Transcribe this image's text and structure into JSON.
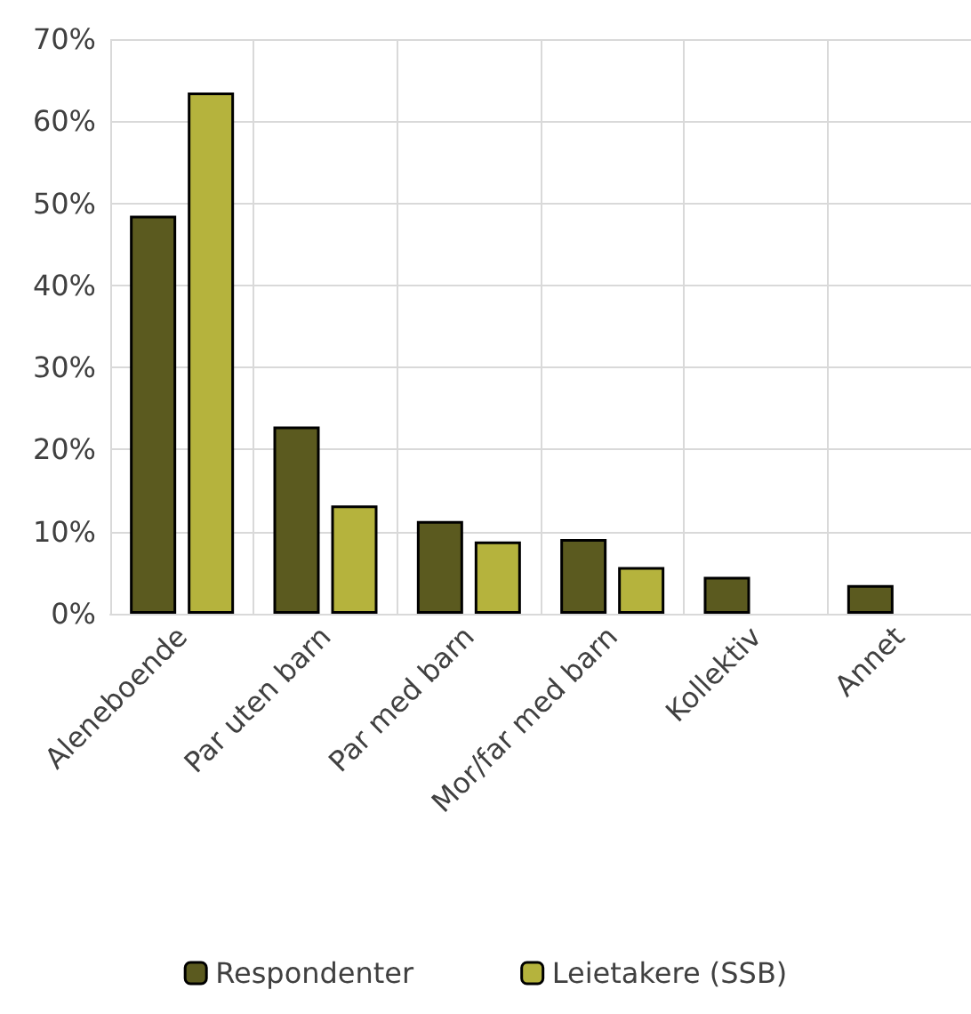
{
  "chart_data": {
    "type": "bar",
    "categories": [
      "Aleneboende",
      "Par uten barn",
      "Par med barn",
      "Mor/far med barn",
      "Kollektiv",
      "Annet"
    ],
    "series": [
      {
        "name": "Respondenter",
        "color": "#5b5a1f",
        "values": [
          48.5,
          22.8,
          11.3,
          9.1,
          4.5,
          3.5
        ]
      },
      {
        "name": "Leietakere (SSB)",
        "color": "#b5b33d",
        "values": [
          63.5,
          13.2,
          8.8,
          5.7,
          null,
          null
        ]
      }
    ],
    "ylim": [
      0,
      70
    ],
    "yticks": [
      {
        "value": 0,
        "label": "0%"
      },
      {
        "value": 10,
        "label": "10%"
      },
      {
        "value": 20,
        "label": "20%"
      },
      {
        "value": 30,
        "label": "30%"
      },
      {
        "value": 40,
        "label": "40%"
      },
      {
        "value": 50,
        "label": "50%"
      },
      {
        "value": 60,
        "label": "60%"
      },
      {
        "value": 70,
        "label": "70%"
      }
    ],
    "grid": true,
    "legend": "bottom"
  }
}
